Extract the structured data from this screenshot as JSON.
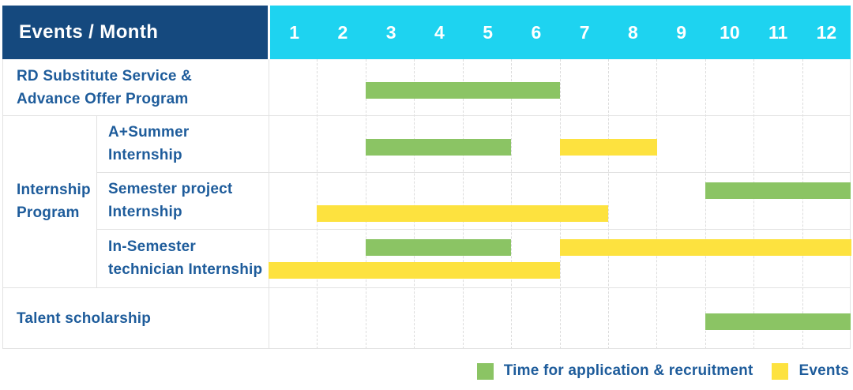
{
  "header": {
    "corner_label": "Events / Month",
    "months": [
      "1",
      "2",
      "3",
      "4",
      "5",
      "6",
      "7",
      "8",
      "9",
      "10",
      "11",
      "12"
    ]
  },
  "group": {
    "label": "Internship\nProgram"
  },
  "legend": {
    "items": [
      {
        "swatch": "green",
        "label": "Time for application & recruitment"
      },
      {
        "swatch": "yellow",
        "label": "Events"
      }
    ]
  },
  "colors": {
    "header_bg": "#15497E",
    "months_bg": "#1ED3F0",
    "recruitment_green": "#8BC464",
    "event_yellow": "#FDE23F",
    "label_text": "#1E5C9B",
    "grid_line": "#E2E2E2"
  },
  "chart_data": {
    "type": "bar",
    "subtype": "gantt-timeline-table",
    "title": "Events / Month",
    "x_categories": [
      1,
      2,
      3,
      4,
      5,
      6,
      7,
      8,
      9,
      10,
      11,
      12
    ],
    "x_range": [
      1,
      12
    ],
    "grid": true,
    "legend_position": "bottom-right",
    "legend": [
      "Time for application & recruitment",
      "Events"
    ],
    "rows": [
      {
        "label": "RD Substitute Service &\nAdvance Offer Program",
        "group": null,
        "bars": [
          {
            "kind": "recruitment",
            "start_month": 3,
            "end_month": 6,
            "lane": "center"
          }
        ]
      },
      {
        "label": "A+Summer\nInternship",
        "group": "Internship Program",
        "bars": [
          {
            "kind": "recruitment",
            "start_month": 3,
            "end_month": 5,
            "lane": "center"
          },
          {
            "kind": "event",
            "start_month": 7,
            "end_month": 8,
            "lane": "center"
          }
        ]
      },
      {
        "label": "Semester project\nInternship",
        "group": "Internship Program",
        "bars": [
          {
            "kind": "recruitment",
            "start_month": 10,
            "end_month": 12,
            "lane": "top"
          },
          {
            "kind": "event",
            "start_month": 2,
            "end_month": 7,
            "lane": "bottom"
          }
        ]
      },
      {
        "label": "In-Semester\ntechnician Internship",
        "group": "Internship Program",
        "bars": [
          {
            "kind": "recruitment",
            "start_month": 3,
            "end_month": 5,
            "lane": "top"
          },
          {
            "kind": "event",
            "start_month": 7,
            "end_month": 12,
            "lane": "top"
          },
          {
            "kind": "event",
            "start_month": 1,
            "end_month": 6,
            "lane": "bottom"
          }
        ]
      },
      {
        "label": "Talent scholarship",
        "group": null,
        "bars": [
          {
            "kind": "recruitment",
            "start_month": 10,
            "end_month": 12,
            "lane": "center"
          }
        ]
      }
    ]
  }
}
